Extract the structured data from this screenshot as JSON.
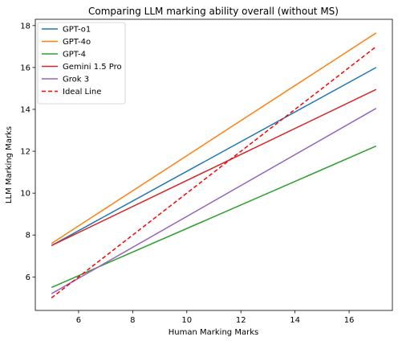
{
  "chart_data": {
    "type": "line",
    "title": "Comparing LLM marking ability overall (without MS)",
    "xlabel": "Human Marking Marks",
    "ylabel": "LLM Marking Marks",
    "xlim": [
      4.4,
      17.6
    ],
    "ylim": [
      4.4,
      18.3
    ],
    "xticks": [
      6,
      8,
      10,
      12,
      14,
      16
    ],
    "yticks": [
      6,
      8,
      10,
      12,
      14,
      16,
      18
    ],
    "grid": false,
    "legend_position": "top-left",
    "series": [
      {
        "name": "GPT-o1",
        "color": "#1f77b4",
        "style": "solid",
        "x": [
          5,
          17
        ],
        "y": [
          7.5,
          16.0
        ]
      },
      {
        "name": "GPT-4o",
        "color": "#ff7f0e",
        "style": "solid",
        "x": [
          5,
          17
        ],
        "y": [
          7.6,
          17.65
        ]
      },
      {
        "name": "GPT-4",
        "color": "#2ca02c",
        "style": "solid",
        "x": [
          5,
          17
        ],
        "y": [
          5.5,
          12.25
        ]
      },
      {
        "name": "Gemini 1.5 Pro",
        "color": "#d62728",
        "style": "solid",
        "x": [
          5,
          17
        ],
        "y": [
          7.5,
          14.95
        ]
      },
      {
        "name": "Grok 3",
        "color": "#9467bd",
        "style": "solid",
        "x": [
          5,
          17
        ],
        "y": [
          5.2,
          14.05
        ]
      },
      {
        "name": "Ideal Line",
        "color": "#ff0000",
        "style": "dashed",
        "x": [
          5,
          17
        ],
        "y": [
          5.0,
          17.0
        ]
      }
    ]
  }
}
